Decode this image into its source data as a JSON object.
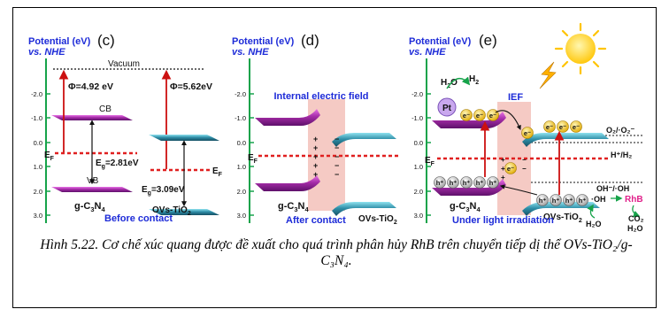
{
  "colors": {
    "axis": "#16a34a",
    "label_blue": "#1d2bd8",
    "gcn_band": "#7a1f8a",
    "gcn_band_light": "#d64fd8",
    "tio2_band": "#1f6e86",
    "tio2_band_light": "#6fd0e0",
    "fermi": "#e02020",
    "arrow_red": "#cc1010",
    "ief_region": "#f2b8b0",
    "electron": "#f2c21a",
    "hole": "#c9c9c9",
    "sun": "#ffd21a",
    "pt": "#c9a8ee",
    "rhb": "#e0208a"
  },
  "panels": {
    "c": {
      "axis_title": "Potential (eV)",
      "axis_subtitle": "vs. NHE",
      "tag": "(c)",
      "ticks": [
        "-2.0",
        "-1.0",
        "0.0",
        "1.0",
        "2.0",
        "3.0"
      ],
      "vacuum": "Vacuum",
      "phi_gcn": "Φ=4.92 eV",
      "phi_tio2": "Φ=5.62eV",
      "cb": "CB",
      "vb": "VB",
      "ef_left": "E",
      "ef_left_sub": "F",
      "ef_right": "E",
      "ef_right_sub": "F",
      "eg_gcn": "E",
      "eg_gcn_sub": "g",
      "eg_gcn_val": "=2.81eV",
      "eg_tio2": "E",
      "eg_tio2_sub": "g",
      "eg_tio2_val": "=3.09eV",
      "gcn": "g-C",
      "gcn_sub3": "3",
      "gcn_n": "N",
      "gcn_sub4": "4",
      "tio2": "OVs-TiO",
      "tio2_sub": "2",
      "footer": "Before contact"
    },
    "d": {
      "axis_title": "Potential (eV)",
      "axis_subtitle": "vs. NHE",
      "tag": "(d)",
      "ticks": [
        "-2.0",
        "-1.0",
        "0.0",
        "1.0",
        "2.0",
        "3.0"
      ],
      "ief": "Internal electric field",
      "ef": "E",
      "ef_sub": "F",
      "gcn": "g-C",
      "gcn_sub3": "3",
      "gcn_n": "N",
      "gcn_sub4": "4",
      "tio2": "OVs-TiO",
      "tio2_sub": "2",
      "footer": "After contact"
    },
    "e": {
      "axis_title": "Potential (eV)",
      "axis_subtitle": "vs. NHE",
      "tag": "(e)",
      "ticks": [
        "-2.0",
        "-1.0",
        "0.0",
        "1.0",
        "2.0",
        "3.0"
      ],
      "ief": "IEF",
      "pt": "Pt",
      "h2o": "H",
      "h2o_sub": "2",
      "h2o_o": "O",
      "h2": "H",
      "h2_sub": "2",
      "o2_couple": "O₂/·O₂⁻",
      "h_couple": "H⁺/H₂",
      "oh_couple": "OH⁻/·OH",
      "ef": "E",
      "ef_sub": "F",
      "electron": "e⁻",
      "hole": "h⁺",
      "oh_rad": "·OH",
      "rhb": "RhB",
      "co2": "CO₂",
      "h2o_prod": "H₂O",
      "h2o_left": "H₂O",
      "gcn": "g-C",
      "gcn_sub3": "3",
      "gcn_n": "N",
      "gcn_sub4": "4",
      "tio2": "OVs-TiO",
      "tio2_sub": "2",
      "footer": "Under light irradiation"
    }
  },
  "caption": "Hình 5.22. Cơ chế xúc quang được đề xuất cho quá trình phân hủy RhB trên chuyển tiếp dị thể OVs-TiO₂/g-C₃N₄."
}
